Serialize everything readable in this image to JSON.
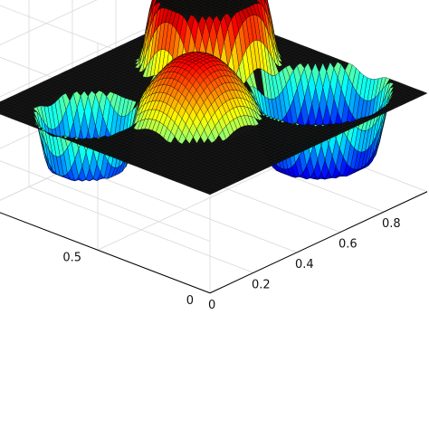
{
  "chart_data": {
    "type": "surface3d",
    "title": "",
    "xlabel": "",
    "ylabel": "",
    "zlabel": "",
    "colormap": "jet",
    "x_ticks": [
      "0",
      "0.2",
      "0.4",
      "0.6",
      "0.8"
    ],
    "y_ticks": [
      "0",
      "0.5"
    ],
    "xlim": [
      0,
      1
    ],
    "ylim": [
      0,
      1
    ],
    "zlim": [
      -1,
      1
    ],
    "grid": true,
    "plane_level": 0,
    "features": [
      {
        "kind": "plateau",
        "center": [
          0.72,
          0.7
        ],
        "radius": 0.22,
        "height": 1.0
      },
      {
        "kind": "cone",
        "center": [
          0.4,
          0.45
        ],
        "radius": 0.21,
        "height": 0.85
      },
      {
        "kind": "well",
        "center": [
          0.18,
          0.72
        ],
        "radius": 0.17,
        "depth": -0.75
      },
      {
        "kind": "well",
        "center": [
          0.78,
          0.26
        ],
        "radius": 0.23,
        "depth": -0.95
      }
    ]
  }
}
